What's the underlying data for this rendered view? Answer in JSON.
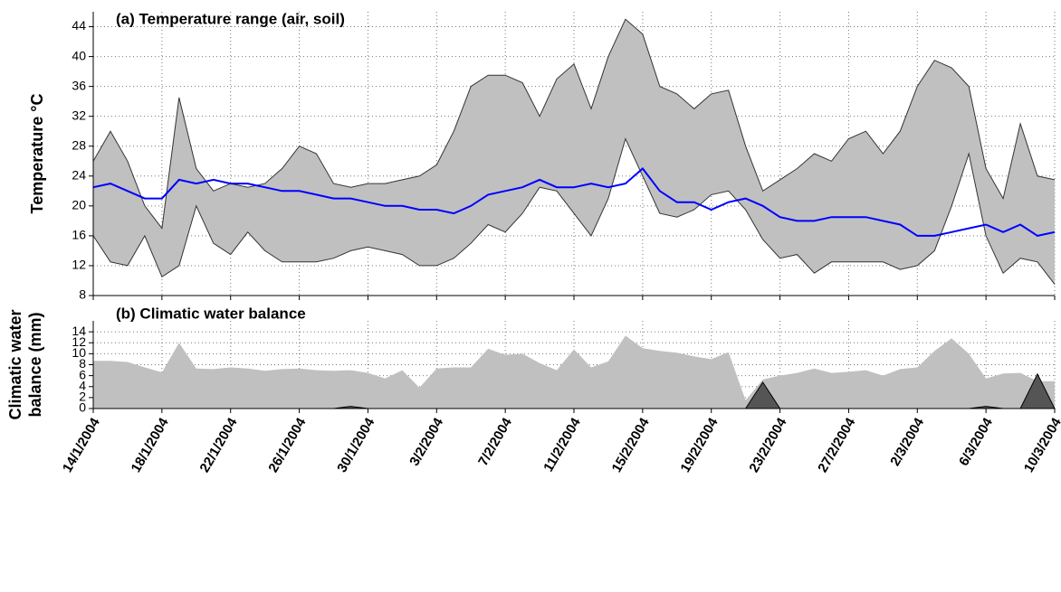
{
  "chart_data": [
    {
      "type": "area",
      "title": "(a) Temperature range (air, soil)",
      "ylabel": [
        "Temperature °C"
      ],
      "x": [
        "2004-01-14",
        "2004-01-15",
        "2004-01-16",
        "2004-01-17",
        "2004-01-18",
        "2004-01-19",
        "2004-01-20",
        "2004-01-21",
        "2004-01-22",
        "2004-01-23",
        "2004-01-24",
        "2004-01-25",
        "2004-01-26",
        "2004-01-27",
        "2004-01-28",
        "2004-01-29",
        "2004-01-30",
        "2004-01-31",
        "2004-02-01",
        "2004-02-02",
        "2004-02-03",
        "2004-02-04",
        "2004-02-05",
        "2004-02-06",
        "2004-02-07",
        "2004-02-08",
        "2004-02-09",
        "2004-02-10",
        "2004-02-11",
        "2004-02-12",
        "2004-02-13",
        "2004-02-14",
        "2004-02-15",
        "2004-02-16",
        "2004-02-17",
        "2004-02-18",
        "2004-02-19",
        "2004-02-20",
        "2004-02-21",
        "2004-02-22",
        "2004-02-23",
        "2004-02-24",
        "2004-02-25",
        "2004-02-26",
        "2004-02-27",
        "2004-02-28",
        "2004-02-29",
        "2004-03-01",
        "2004-03-02",
        "2004-03-03",
        "2004-03-04",
        "2004-03-05",
        "2004-03-06",
        "2004-03-07",
        "2004-03-08",
        "2004-03-09",
        "2004-03-10"
      ],
      "series": [
        {
          "kind": "band",
          "color": "#c0c0c0",
          "edge": "#333333",
          "values": [
            26,
            30,
            26,
            20,
            17,
            34.5,
            25,
            22,
            23,
            22.5,
            23,
            25,
            28,
            27,
            23,
            22.5,
            23,
            23,
            23.5,
            24,
            25.5,
            30,
            36,
            37.5,
            37.5,
            36.5,
            32,
            37,
            39,
            33,
            40,
            45,
            43,
            36,
            35,
            33,
            35,
            35.5,
            28,
            22,
            23.5,
            25,
            27,
            26,
            29,
            30,
            27,
            30,
            36,
            39.5,
            38.5,
            36,
            25,
            21,
            31,
            24,
            23.5
          ],
          "lower": [
            16,
            12.5,
            12,
            16,
            10.5,
            12,
            20,
            15,
            13.5,
            16.5,
            14,
            12.5,
            12.5,
            12.5,
            13,
            14,
            14.5,
            14,
            13.5,
            12,
            12,
            13,
            15,
            17.5,
            16.5,
            19,
            22.5,
            22,
            19,
            16,
            21,
            29,
            24,
            19,
            18.5,
            19.5,
            21.5,
            22,
            19.5,
            15.5,
            13,
            13.5,
            11,
            12.5,
            12.5,
            12.5,
            12.5,
            11.5,
            12,
            14,
            20,
            27,
            16,
            11,
            13,
            12.5,
            9.5
          ]
        },
        {
          "kind": "line",
          "color": "#0000ff",
          "values": [
            22.5,
            23,
            22,
            21,
            21,
            23.5,
            23,
            23.5,
            23,
            23,
            22.5,
            22,
            22,
            21.5,
            21,
            21,
            20.5,
            20,
            20,
            19.5,
            19.5,
            19,
            20,
            21.5,
            22,
            22.5,
            23.5,
            22.5,
            22.5,
            23,
            22.5,
            23,
            25,
            22,
            20.5,
            20.5,
            19.5,
            20.5,
            21,
            20,
            18.5,
            18,
            18,
            18.5,
            18.5,
            18.5,
            18,
            17.5,
            16,
            16,
            16.5,
            17,
            17.5,
            16.5,
            17.5,
            16,
            16.5
          ]
        }
      ],
      "xlim": [
        "2004-01-14",
        "2004-03-10"
      ],
      "xticks": [
        "2004-01-14",
        "2004-01-18",
        "2004-01-22",
        "2004-01-26",
        "2004-01-30",
        "2004-02-03",
        "2004-02-07",
        "2004-02-11",
        "2004-02-15",
        "2004-02-19",
        "2004-02-23",
        "2004-02-27",
        "2004-03-02",
        "2004-03-06",
        "2004-03-10"
      ],
      "xtick_labels": false,
      "ylim": [
        8,
        46
      ],
      "yticks": [
        8,
        12,
        16,
        20,
        24,
        28,
        32,
        36,
        40,
        44
      ],
      "grid": true
    },
    {
      "type": "area",
      "title": "(b) Climatic water balance",
      "ylabel": [
        "Climatic water",
        "balance (mm)"
      ],
      "x": [
        "2004-01-14",
        "2004-01-15",
        "2004-01-16",
        "2004-01-17",
        "2004-01-18",
        "2004-01-19",
        "2004-01-20",
        "2004-01-21",
        "2004-01-22",
        "2004-01-23",
        "2004-01-24",
        "2004-01-25",
        "2004-01-26",
        "2004-01-27",
        "2004-01-28",
        "2004-01-29",
        "2004-01-30",
        "2004-01-31",
        "2004-02-01",
        "2004-02-02",
        "2004-02-03",
        "2004-02-04",
        "2004-02-05",
        "2004-02-06",
        "2004-02-07",
        "2004-02-08",
        "2004-02-09",
        "2004-02-10",
        "2004-02-11",
        "2004-02-12",
        "2004-02-13",
        "2004-02-14",
        "2004-02-15",
        "2004-02-16",
        "2004-02-17",
        "2004-02-18",
        "2004-02-19",
        "2004-02-20",
        "2004-02-21",
        "2004-02-22",
        "2004-02-23",
        "2004-02-24",
        "2004-02-25",
        "2004-02-26",
        "2004-02-27",
        "2004-02-28",
        "2004-02-29",
        "2004-03-01",
        "2004-03-02",
        "2004-03-03",
        "2004-03-04",
        "2004-03-05",
        "2004-03-06",
        "2004-03-07",
        "2004-03-08",
        "2004-03-09",
        "2004-03-10"
      ],
      "series": [
        {
          "kind": "area",
          "color": "#c0c0c0",
          "values": [
            8.7,
            8.7,
            8.5,
            7.5,
            6.6,
            12,
            7.3,
            7.2,
            7.5,
            7.3,
            6.9,
            7.2,
            7.3,
            7,
            6.9,
            7,
            6.5,
            5.5,
            7,
            3.8,
            7.3,
            7.5,
            7.5,
            10.9,
            9.8,
            10,
            8.3,
            7,
            10.8,
            7.5,
            8.6,
            13.3,
            11,
            10.5,
            10.2,
            9.5,
            9,
            10.3,
            1.5,
            5.3,
            6,
            6.5,
            7.3,
            6.5,
            6.7,
            7,
            6,
            7.2,
            7.5,
            10.5,
            12.8,
            10,
            5.5,
            6.4,
            6.5,
            5,
            5
          ]
        },
        {
          "kind": "area",
          "color": "#555555",
          "edge": "#000000",
          "values": [
            0,
            0,
            0,
            0,
            0,
            0,
            0,
            0,
            0,
            0,
            0,
            0,
            0,
            0,
            0,
            0.4,
            0,
            0,
            0,
            0,
            0,
            0,
            0,
            0,
            0,
            0,
            0,
            0,
            0,
            0,
            0,
            0,
            0,
            0,
            0,
            0,
            0,
            0,
            0,
            4.8,
            0,
            0,
            0,
            0,
            0,
            0,
            0,
            0,
            0,
            0,
            0,
            0,
            0.4,
            0,
            0,
            6.3,
            0
          ]
        }
      ],
      "xlim": [
        "2004-01-14",
        "2004-03-10"
      ],
      "xticks": [
        {
          "value": "2004-01-14",
          "label": "14/1/2004"
        },
        {
          "value": "2004-01-18",
          "label": "18/1/2004"
        },
        {
          "value": "2004-01-22",
          "label": "22/1/2004"
        },
        {
          "value": "2004-01-26",
          "label": "26/1/2004"
        },
        {
          "value": "2004-01-30",
          "label": "30/1/2004"
        },
        {
          "value": "2004-02-03",
          "label": "3/2/2004"
        },
        {
          "value": "2004-02-07",
          "label": "7/2/2004"
        },
        {
          "value": "2004-02-11",
          "label": "11/2/2004"
        },
        {
          "value": "2004-02-15",
          "label": "15/2/2004"
        },
        {
          "value": "2004-02-19",
          "label": "19/2/2004"
        },
        {
          "value": "2004-02-23",
          "label": "23/2/2004"
        },
        {
          "value": "2004-02-27",
          "label": "27/2/2004"
        },
        {
          "value": "2004-03-02",
          "label": "2/3/2004"
        },
        {
          "value": "2004-03-06",
          "label": "6/3/2004"
        },
        {
          "value": "2004-03-10",
          "label": "10/3/2004"
        }
      ],
      "xtick_labels": true,
      "ylim": [
        0,
        16
      ],
      "yticks": [
        0,
        2,
        4,
        6,
        8,
        10,
        12,
        14
      ],
      "grid": true
    }
  ]
}
